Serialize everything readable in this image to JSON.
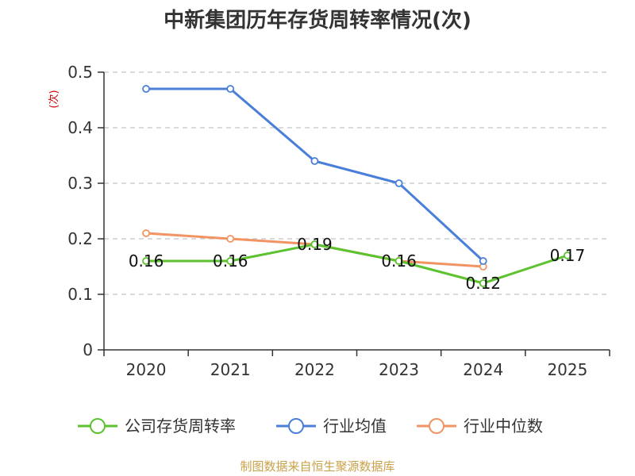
{
  "chart_data": {
    "type": "line",
    "title": "中新集团历年存货周转率情况(次)",
    "ylabel": "(次)",
    "categories": [
      "2020",
      "2021",
      "2022",
      "2023",
      "2024",
      "2025"
    ],
    "ylim": [
      0,
      0.5
    ],
    "yticks": [
      "0",
      "0.1",
      "0.2",
      "0.3",
      "0.4",
      "0.5"
    ],
    "grid": true,
    "legend_position": "bottom",
    "series": [
      {
        "name": "公司存货周转率",
        "color": "#5cc22e",
        "values": [
          0.16,
          0.16,
          0.19,
          0.16,
          0.12,
          0.17
        ],
        "labels": [
          "0.16",
          "0.16",
          "0.19",
          "0.16",
          "0.12",
          "0.17"
        ]
      },
      {
        "name": "行业均值",
        "color": "#4a7fd9",
        "values": [
          0.47,
          0.47,
          0.34,
          0.3,
          0.16,
          null
        ]
      },
      {
        "name": "行业中位数",
        "color": "#f29362",
        "values": [
          0.21,
          0.2,
          0.19,
          0.16,
          0.15,
          null
        ]
      }
    ],
    "source": "制图数据来自恒生聚源数据库"
  }
}
